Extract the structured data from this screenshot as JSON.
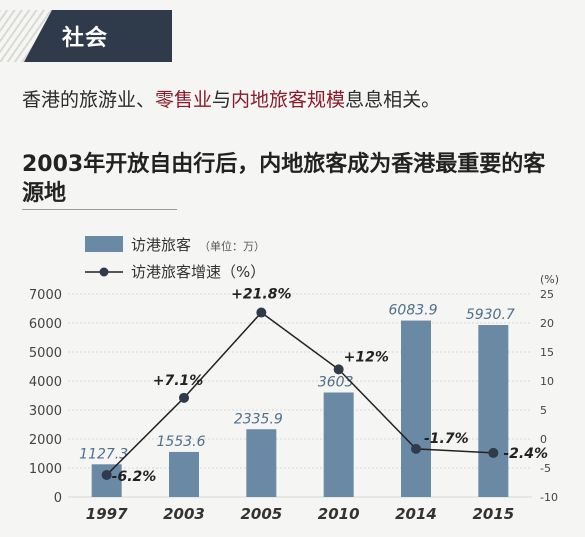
{
  "section_tag": "社会",
  "intro": {
    "part1": "香港的旅游业、",
    "highlight1": "零售业",
    "part2": "与",
    "highlight2": "内地旅客规模",
    "part3": "息息相关。"
  },
  "colors": {
    "bar": "#6a89a4",
    "line": "#222222",
    "highlight_text": "#8b1a2b",
    "tag_bg": "#2f3b4a"
  },
  "chart_data": {
    "type": "bar",
    "title": "2003年开放自由行后，内地旅客成为香港最重要的客源地",
    "categories": [
      "1997",
      "2003",
      "2005",
      "2010",
      "2014",
      "2015"
    ],
    "series": [
      {
        "name": "访港旅客",
        "unit_note": "（单位：万）",
        "type": "bar",
        "axis": "left",
        "values": [
          1127.3,
          1553.6,
          2335.9,
          3603,
          6083.9,
          5930.7
        ],
        "labels": [
          "1127.3",
          "1553.6",
          "2335.9",
          "3603",
          "6083.9",
          "5930.7"
        ]
      },
      {
        "name": "访港旅客增速（%）",
        "type": "line",
        "axis": "right",
        "values": [
          -6.2,
          7.1,
          21.8,
          12,
          -1.7,
          -2.4
        ],
        "labels": [
          "-6.2%",
          "+7.1%",
          "+21.8%",
          "+12%",
          "-1.7%",
          "-2.4%"
        ]
      }
    ],
    "left_axis": {
      "range": [
        0,
        7000
      ],
      "ticks": [
        "0",
        "1000",
        "2000",
        "3000",
        "4000",
        "5000",
        "6000",
        "7000"
      ]
    },
    "right_axis": {
      "unit": "(%)",
      "range": [
        -10,
        25
      ],
      "ticks": [
        "-10",
        "-5",
        "0",
        "5",
        "10",
        "15",
        "20",
        "25"
      ]
    },
    "grid": true,
    "legend_position": "top-left"
  }
}
